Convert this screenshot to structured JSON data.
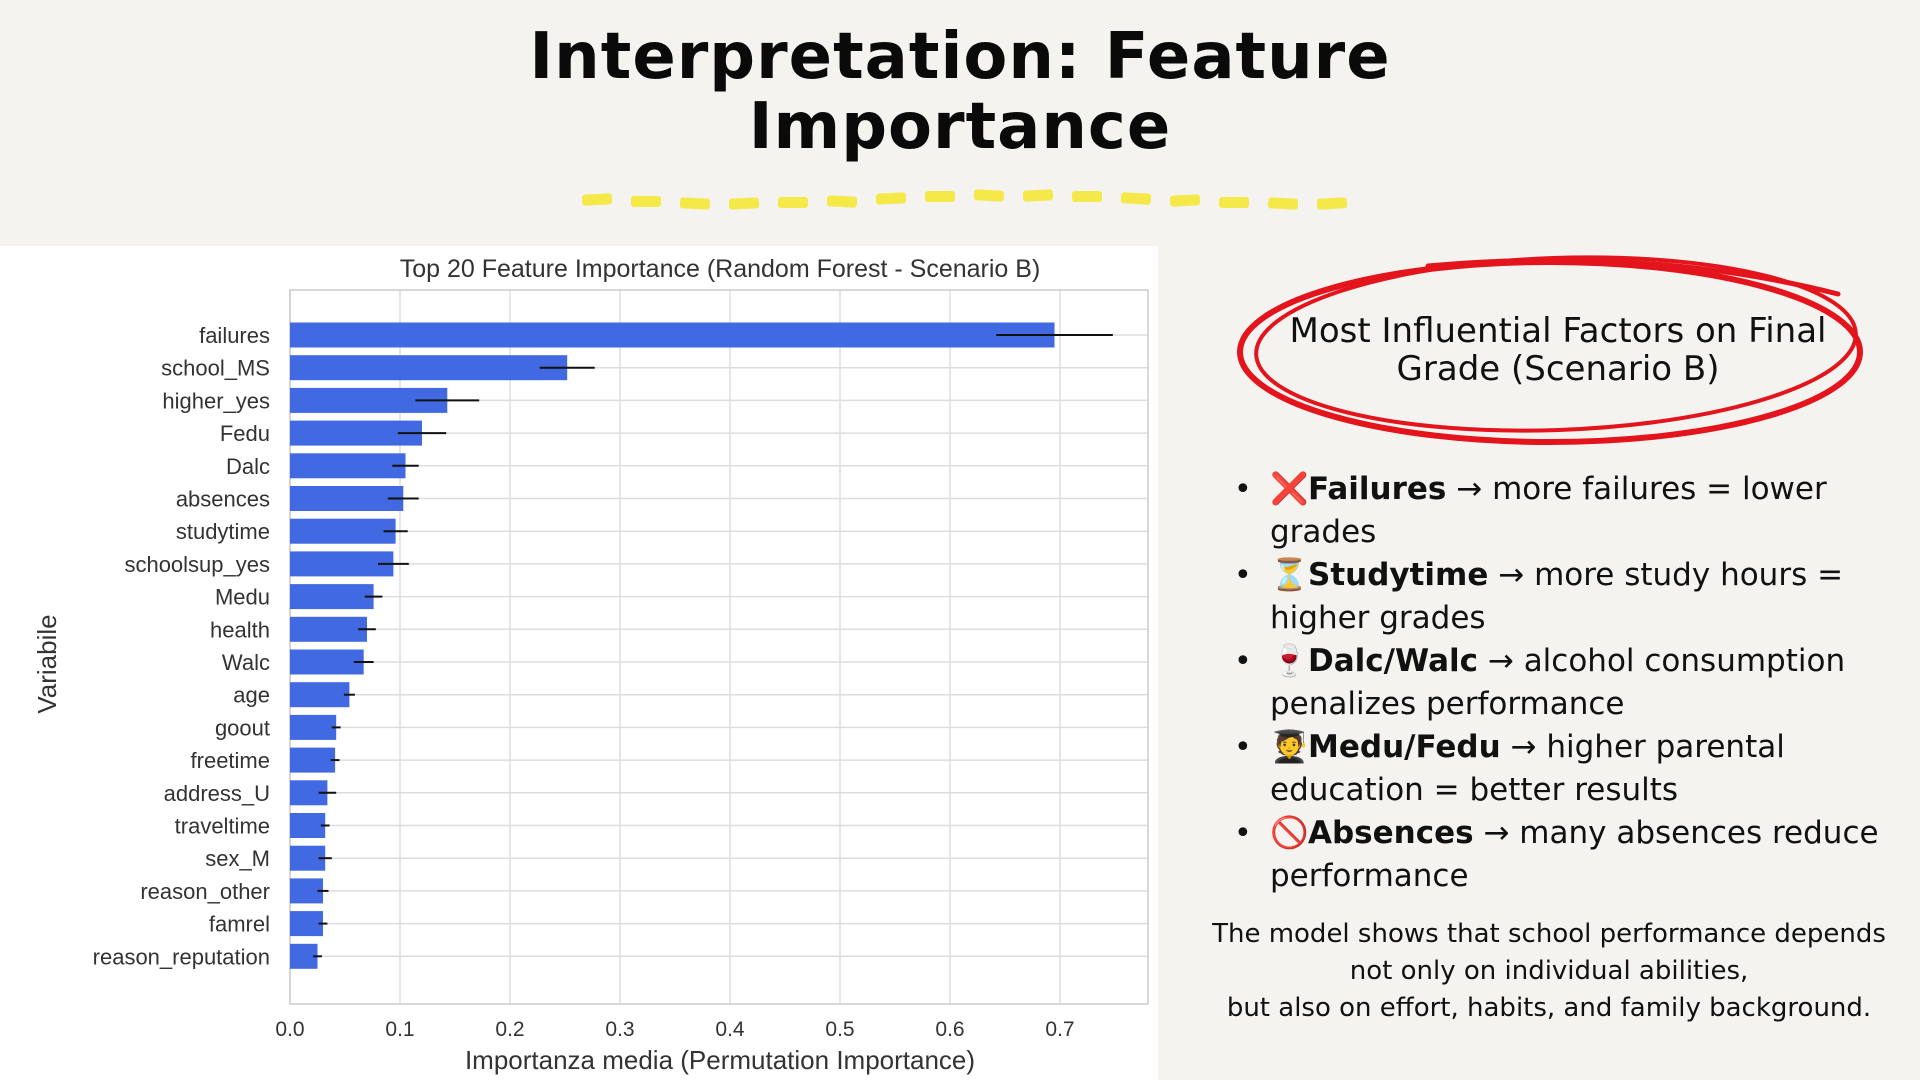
{
  "slide": {
    "title": "Interpretation: Feature Importance",
    "callout_heading": "Most Influential Factors on Final Grade (Scenario B)",
    "points": [
      {
        "icon": "cross-mark-icon",
        "glyph": "❌",
        "color": "#e0262b",
        "term": "Failures",
        "text": "→ more failures = lower grades"
      },
      {
        "icon": "hourglass-icon",
        "glyph": "⏳",
        "color": "#c9882a",
        "term": "Studytime",
        "text": "→ more study hours = higher grades"
      },
      {
        "icon": "wine-glass-icon",
        "glyph": "🍷",
        "color": "#9b1b30",
        "term": "Dalc/Walc",
        "text": "→ alcohol consumption penalizes performance"
      },
      {
        "icon": "graduate-icon",
        "glyph": "🧑‍🎓",
        "color": "#333333",
        "term": "Medu/Fedu",
        "text": "→ higher parental education = better results"
      },
      {
        "icon": "prohibited-icon",
        "glyph": "🚫",
        "color": "#e0262b",
        "term": "Absences",
        "text": "→  many absences reduce performance"
      }
    ],
    "summary_lines": [
      "The model shows that school performance depends",
      "not only on individual abilities,",
      "but also on effort, habits, and family background."
    ],
    "colors": {
      "accent_yellow": "#f5e94a",
      "circle_red": "#e3141c",
      "background": "#f4f3f0"
    }
  },
  "chart_data": {
    "type": "bar",
    "orientation": "horizontal",
    "title": "Top 20 Feature Importance (Random Forest - Scenario B)",
    "xlabel": "Importanza media (Permutation Importance)",
    "ylabel": "Variabile",
    "xlim": [
      0.0,
      0.78
    ],
    "xticks": [
      0.0,
      0.1,
      0.2,
      0.3,
      0.4,
      0.5,
      0.6,
      0.7
    ],
    "xtick_labels": [
      "0.0",
      "0.1",
      "0.2",
      "0.3",
      "0.4",
      "0.5",
      "0.6",
      "0.7"
    ],
    "grid": true,
    "bar_color": "#4169e1",
    "categories": [
      "failures",
      "school_MS",
      "higher_yes",
      "Fedu",
      "Dalc",
      "absences",
      "studytime",
      "schoolsup_yes",
      "Medu",
      "health",
      "Walc",
      "age",
      "goout",
      "freetime",
      "address_U",
      "traveltime",
      "sex_M",
      "reason_other",
      "famrel",
      "reason_reputation"
    ],
    "values": [
      0.695,
      0.252,
      0.143,
      0.12,
      0.105,
      0.103,
      0.096,
      0.094,
      0.076,
      0.07,
      0.067,
      0.054,
      0.042,
      0.041,
      0.034,
      0.032,
      0.032,
      0.03,
      0.03,
      0.025
    ],
    "errors": [
      0.053,
      0.025,
      0.029,
      0.022,
      0.012,
      0.014,
      0.011,
      0.014,
      0.008,
      0.008,
      0.009,
      0.005,
      0.004,
      0.004,
      0.008,
      0.004,
      0.006,
      0.005,
      0.004,
      0.004
    ]
  }
}
